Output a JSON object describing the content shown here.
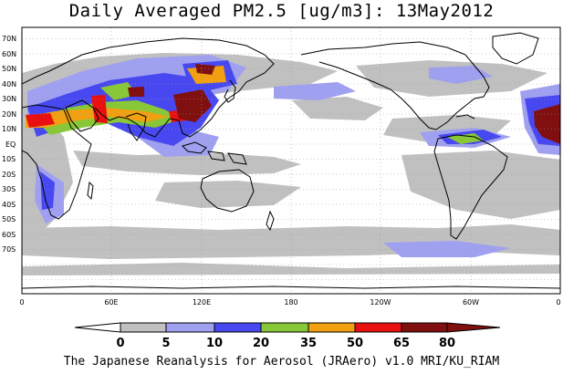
{
  "title": "Daily Averaged PM2.5 [ug/m3]: 13May2012",
  "footer": "The Japanese Reanalysis for Aerosol (JRAero) v1.0 MRI/KU_RIAM",
  "lat_labels": [
    "70N",
    "60N",
    "50N",
    "40N",
    "30N",
    "20N",
    "10N",
    "EQ",
    "10S",
    "20S",
    "30S",
    "40S",
    "50S",
    "60S",
    "70S"
  ],
  "lon_labels": [
    "0",
    "60E",
    "120E",
    "180",
    "120W",
    "60W",
    "0"
  ],
  "colorbar": {
    "bounds": [
      "0",
      "5",
      "10",
      "20",
      "35",
      "50",
      "65",
      "80"
    ],
    "colors": [
      "#ffffff",
      "#c0c0c0",
      "#a0a0f0",
      "#4848f0",
      "#88c838",
      "#f0a010",
      "#e81010",
      "#801010"
    ]
  }
}
